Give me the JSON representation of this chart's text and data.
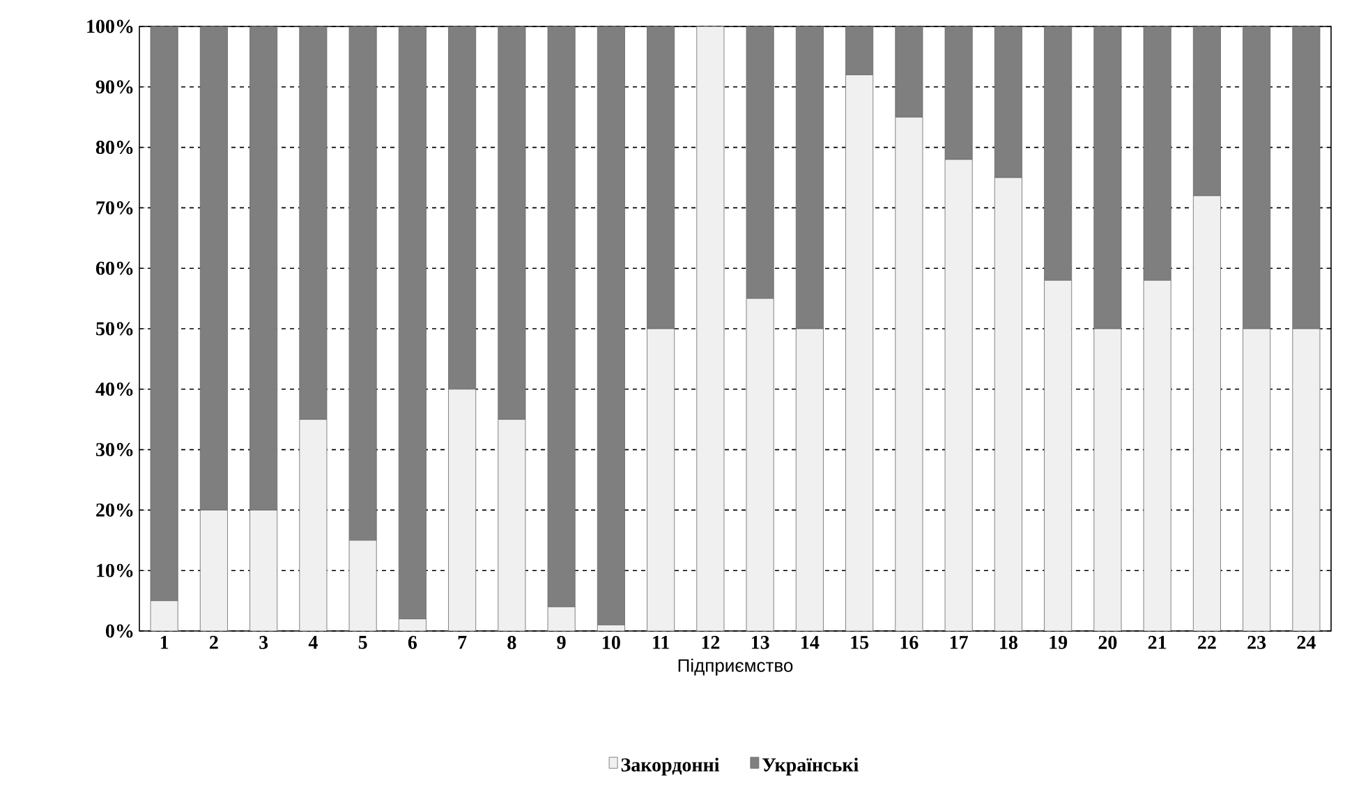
{
  "chart_data": {
    "type": "bar",
    "stacked": true,
    "xlabel": "Підприємство",
    "categories": [
      "1",
      "2",
      "3",
      "4",
      "5",
      "6",
      "7",
      "8",
      "9",
      "10",
      "11",
      "12",
      "13",
      "14",
      "15",
      "16",
      "17",
      "18",
      "19",
      "20",
      "21",
      "22",
      "23",
      "24"
    ],
    "series": [
      {
        "name": "Закордонні",
        "color": "#f0f0f0",
        "values": [
          5,
          20,
          20,
          35,
          15,
          2,
          40,
          35,
          4,
          1,
          50,
          100,
          55,
          50,
          92,
          85,
          78,
          75,
          58,
          50,
          58,
          72,
          50,
          50
        ]
      },
      {
        "name": "Українські",
        "color": "#7f7f7f",
        "values": [
          95,
          80,
          80,
          65,
          85,
          98,
          60,
          65,
          96,
          99,
          50,
          0,
          45,
          50,
          8,
          15,
          22,
          25,
          42,
          50,
          42,
          28,
          50,
          50
        ]
      }
    ],
    "ylim": [
      0,
      100
    ],
    "yticks": [
      {
        "value": 0,
        "label": "0%"
      },
      {
        "value": 10,
        "label": "10%"
      },
      {
        "value": 20,
        "label": "20%"
      },
      {
        "value": 30,
        "label": "30%"
      },
      {
        "value": 40,
        "label": "40%"
      },
      {
        "value": 50,
        "label": "50%"
      },
      {
        "value": 60,
        "label": "60%"
      },
      {
        "value": 70,
        "label": "70%"
      },
      {
        "value": 80,
        "label": "80%"
      },
      {
        "value": 90,
        "label": "90%"
      },
      {
        "value": 100,
        "label": "100%"
      }
    ],
    "grid": "y",
    "legend": "bottom"
  }
}
